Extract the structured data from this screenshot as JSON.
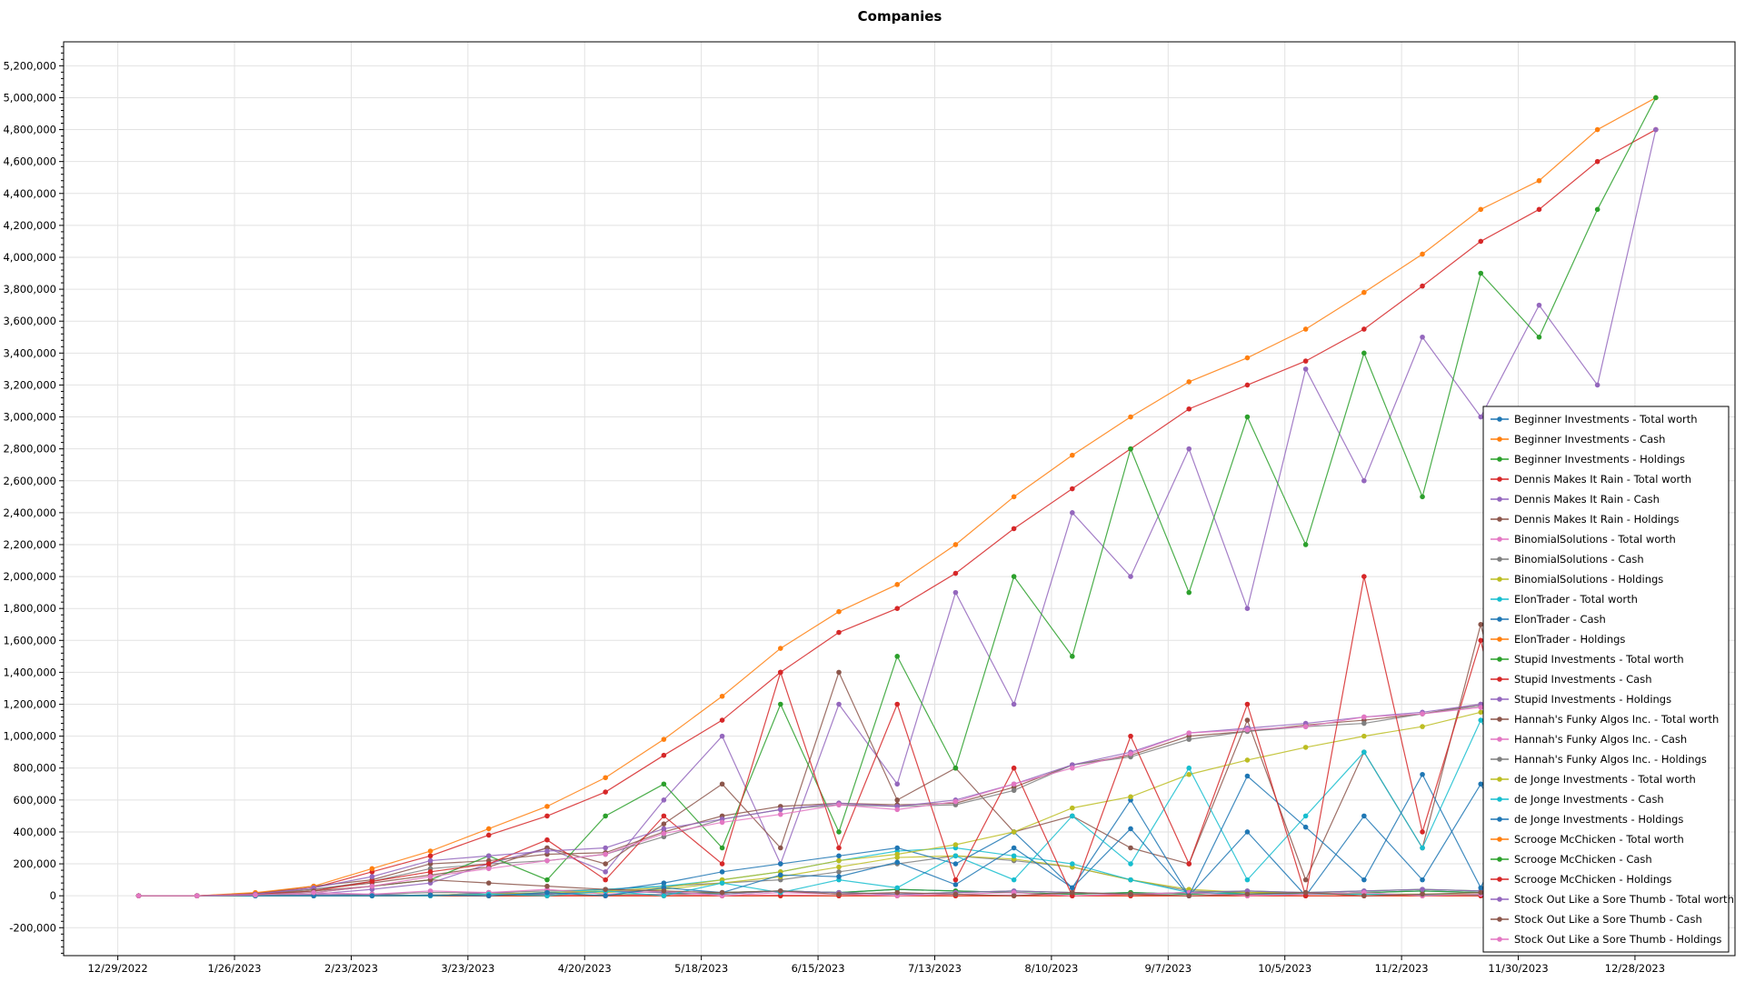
{
  "chart_data": {
    "type": "line",
    "title": "Companies",
    "xlabel": "",
    "ylabel": "",
    "ylim": [
      -375000,
      5350000
    ],
    "xlim": [
      "2022-12-16",
      "2024-01-21"
    ],
    "grid": true,
    "legend": "right",
    "y_ticks": [
      -200000,
      0,
      200000,
      400000,
      600000,
      800000,
      1000000,
      1200000,
      1400000,
      1600000,
      1800000,
      2000000,
      2200000,
      2400000,
      2600000,
      2800000,
      3000000,
      3200000,
      3400000,
      3600000,
      3800000,
      4000000,
      4200000,
      4400000,
      4600000,
      4800000,
      5000000,
      5200000
    ],
    "x_ticks": [
      "12/29/2022",
      "1/26/2023",
      "2/23/2023",
      "3/23/2023",
      "4/20/2023",
      "5/18/2023",
      "6/15/2023",
      "7/13/2023",
      "8/10/2023",
      "9/7/2023",
      "10/5/2023",
      "11/2/2023",
      "11/30/2023",
      "12/28/2023"
    ],
    "palette": [
      "#1f77b4",
      "#ff7f0e",
      "#2ca02c",
      "#d62728",
      "#9467bd",
      "#8c564b",
      "#e377c2",
      "#7f7f7f",
      "#bcbd22",
      "#17becf"
    ],
    "x": [
      "2023-01-03",
      "2023-01-17",
      "2023-01-31",
      "2023-02-14",
      "2023-02-28",
      "2023-03-14",
      "2023-03-28",
      "2023-04-11",
      "2023-04-25",
      "2023-05-09",
      "2023-05-23",
      "2023-06-06",
      "2023-06-20",
      "2023-07-04",
      "2023-07-18",
      "2023-08-01",
      "2023-08-15",
      "2023-08-29",
      "2023-09-12",
      "2023-09-26",
      "2023-10-10",
      "2023-10-24",
      "2023-11-07",
      "2023-11-21",
      "2023-12-05",
      "2023-12-19",
      "2024-01-02"
    ],
    "series": [
      {
        "name": "Beginner Investments - Total worth",
        "values": [
          0,
          0,
          0,
          0,
          0,
          0,
          0,
          0,
          5000,
          10000,
          20000,
          30000,
          20000,
          40000,
          30000,
          20000,
          10000,
          20000,
          10000,
          20000,
          10000,
          20000,
          30000,
          20000,
          30000,
          40000,
          30000
        ]
      },
      {
        "name": "Beginner Investments - Cash",
        "values": [
          0,
          0,
          0,
          0,
          0,
          0,
          0,
          0,
          0,
          0,
          0,
          0,
          0,
          0,
          0,
          0,
          0,
          0,
          0,
          0,
          0,
          0,
          0,
          0,
          0,
          0,
          0
        ]
      },
      {
        "name": "Beginner Investments - Holdings",
        "values": [
          0,
          0,
          0,
          0,
          0,
          0,
          0,
          0,
          5000,
          10000,
          20000,
          30000,
          20000,
          40000,
          30000,
          20000,
          10000,
          20000,
          10000,
          20000,
          10000,
          20000,
          30000,
          20000,
          30000,
          40000,
          30000
        ]
      },
      {
        "name": "Dennis Makes It Rain - Total worth",
        "values": [
          0,
          0,
          15000,
          50000,
          150000,
          250000,
          380000,
          500000,
          650000,
          880000,
          1100000,
          1400000,
          1650000,
          1800000,
          2020000,
          2300000,
          2550000,
          2800000,
          3050000,
          3200000,
          3350000,
          3550000,
          3820000,
          4100000,
          4300000,
          4600000,
          4800000
        ]
      },
      {
        "name": "Dennis Makes It Rain - Cash",
        "values": [
          0,
          0,
          5000,
          10000,
          40000,
          80000,
          200000,
          300000,
          150000,
          600000,
          1000000,
          200000,
          1200000,
          700000,
          1900000,
          1200000,
          2400000,
          2000000,
          2800000,
          1800000,
          3300000,
          2600000,
          3500000,
          3000000,
          3700000,
          3200000,
          4800000
        ]
      },
      {
        "name": "Dennis Makes It Rain - Holdings",
        "values": [
          0,
          0,
          10000,
          40000,
          80000,
          130000,
          180000,
          300000,
          200000,
          450000,
          700000,
          300000,
          1400000,
          600000,
          800000,
          400000,
          500000,
          300000,
          200000,
          1100000,
          100000,
          900000,
          300000,
          1700000,
          200000,
          1600000,
          0
        ]
      },
      {
        "name": "BinomialSolutions - Total worth",
        "values": [
          0,
          0,
          5000,
          10000,
          5000,
          0,
          10000,
          5000,
          0,
          10000,
          0,
          5000,
          0,
          10000,
          0,
          5000,
          0,
          10000,
          0,
          5000,
          0,
          0,
          5000,
          0,
          0,
          5000,
          0
        ]
      },
      {
        "name": "BinomialSolutions - Cash",
        "values": [
          0,
          0,
          0,
          0,
          10000,
          20000,
          20000,
          30000,
          40000,
          60000,
          80000,
          100000,
          150000,
          200000,
          250000,
          220000,
          180000,
          100000,
          30000,
          20000,
          20000,
          10000,
          10000,
          10000,
          10000,
          10000,
          10000
        ]
      },
      {
        "name": "BinomialSolutions - Holdings",
        "values": [
          0,
          0,
          0,
          0,
          0,
          0,
          0,
          10000,
          20000,
          40000,
          80000,
          120000,
          180000,
          240000,
          250000,
          230000,
          180000,
          100000,
          40000,
          20000,
          20000,
          10000,
          10000,
          10000,
          10000,
          10000,
          10000
        ]
      },
      {
        "name": "ElonTrader - Total worth",
        "values": [
          0,
          0,
          0,
          0,
          0,
          0,
          10000,
          20000,
          40000,
          60000,
          100000,
          150000,
          220000,
          280000,
          300000,
          250000,
          200000,
          100000,
          20000,
          10000,
          10000,
          10000,
          5000,
          5000,
          5000,
          5000,
          5000
        ]
      },
      {
        "name": "ElonTrader - Cash",
        "values": [
          0,
          0,
          0,
          0,
          0,
          0,
          0,
          10000,
          30000,
          80000,
          150000,
          200000,
          250000,
          300000,
          200000,
          400000,
          50000,
          600000,
          0,
          400000,
          0,
          500000,
          100000,
          700000,
          0,
          300000,
          0
        ]
      },
      {
        "name": "ElonTrader - Holdings",
        "values": [
          0,
          0,
          0,
          0,
          0,
          0,
          0,
          0,
          0,
          0,
          0,
          0,
          0,
          0,
          0,
          0,
          0,
          0,
          0,
          0,
          0,
          0,
          0,
          0,
          0,
          0,
          0
        ]
      },
      {
        "name": "Stupid Investments - Total worth",
        "values": [
          0,
          0,
          0,
          5000,
          10000,
          0,
          20000,
          10000,
          30000,
          20000,
          10000,
          30000,
          20000,
          10000,
          20000,
          30000,
          20000,
          10000,
          20000,
          30000,
          20000,
          30000,
          40000,
          30000,
          50000,
          40000,
          30000
        ]
      },
      {
        "name": "Stupid Investments - Cash",
        "values": [
          0,
          0,
          0,
          0,
          0,
          0,
          0,
          0,
          0,
          0,
          0,
          0,
          0,
          0,
          0,
          0,
          0,
          0,
          0,
          0,
          0,
          0,
          0,
          0,
          0,
          0,
          0
        ]
      },
      {
        "name": "Stupid Investments - Holdings",
        "values": [
          0,
          0,
          0,
          5000,
          10000,
          0,
          20000,
          10000,
          30000,
          20000,
          10000,
          30000,
          20000,
          10000,
          20000,
          30000,
          20000,
          10000,
          20000,
          30000,
          20000,
          30000,
          40000,
          30000,
          50000,
          40000,
          30000
        ]
      },
      {
        "name": "Hannah's Funky Algos Inc. - Total worth",
        "values": [
          0,
          0,
          15000,
          60000,
          100000,
          200000,
          220000,
          260000,
          270000,
          400000,
          500000,
          560000,
          580000,
          570000,
          580000,
          680000,
          820000,
          880000,
          1000000,
          1030000,
          1070000,
          1100000,
          1140000,
          1200000,
          1220000,
          1240000,
          1250000
        ]
      },
      {
        "name": "Hannah's Funky Algos Inc. - Cash",
        "values": [
          0,
          0,
          10000,
          20000,
          10000,
          30000,
          20000,
          40000,
          10000,
          30000,
          0,
          20000,
          10000,
          0,
          10000,
          20000,
          0,
          10000,
          20000,
          0,
          10000,
          20000,
          0,
          10000,
          0,
          10000,
          0
        ]
      },
      {
        "name": "Hannah's Funky Algos Inc. - Holdings",
        "values": [
          0,
          0,
          10000,
          40000,
          90000,
          170000,
          200000,
          220000,
          260000,
          370000,
          480000,
          540000,
          570000,
          560000,
          570000,
          660000,
          820000,
          870000,
          980000,
          1030000,
          1060000,
          1080000,
          1140000,
          1190000,
          1210000,
          1230000,
          1250000
        ]
      },
      {
        "name": "de Jonge Investments - Total worth",
        "values": [
          0,
          0,
          0,
          0,
          0,
          5000,
          10000,
          20000,
          30000,
          50000,
          100000,
          150000,
          220000,
          260000,
          320000,
          400000,
          550000,
          620000,
          760000,
          850000,
          930000,
          1000000,
          1060000,
          1150000,
          1280000,
          1350000,
          1400000
        ]
      },
      {
        "name": "de Jonge Investments - Cash",
        "values": [
          0,
          0,
          0,
          0,
          0,
          0,
          10000,
          0,
          30000,
          0,
          80000,
          20000,
          100000,
          50000,
          250000,
          100000,
          500000,
          200000,
          800000,
          100000,
          500000,
          900000,
          300000,
          1100000,
          400000,
          1300000,
          200000
        ]
      },
      {
        "name": "de Jonge Investments - Holdings",
        "values": [
          0,
          0,
          0,
          0,
          0,
          5000,
          0,
          20000,
          0,
          50000,
          20000,
          130000,
          120000,
          210000,
          70000,
          300000,
          50000,
          420000,
          0,
          750000,
          430000,
          100000,
          760000,
          50000,
          880000,
          50000,
          1200000
        ]
      },
      {
        "name": "Scrooge McChicken - Total worth",
        "values": [
          0,
          0,
          20000,
          60000,
          170000,
          280000,
          420000,
          560000,
          740000,
          980000,
          1250000,
          1550000,
          1780000,
          1950000,
          2200000,
          2500000,
          2760000,
          3000000,
          3220000,
          3370000,
          3550000,
          3780000,
          4020000,
          4300000,
          4480000,
          4800000,
          5000000
        ]
      },
      {
        "name": "Scrooge McChicken - Cash",
        "values": [
          0,
          0,
          5000,
          20000,
          60000,
          100000,
          250000,
          100000,
          500000,
          700000,
          300000,
          1200000,
          400000,
          1500000,
          800000,
          2000000,
          1500000,
          2800000,
          1900000,
          3000000,
          2200000,
          3400000,
          2500000,
          3900000,
          3500000,
          4300000,
          5000000
        ]
      },
      {
        "name": "Scrooge McChicken - Holdings",
        "values": [
          0,
          0,
          10000,
          30000,
          90000,
          150000,
          200000,
          350000,
          100000,
          500000,
          200000,
          1400000,
          300000,
          1200000,
          100000,
          800000,
          0,
          1000000,
          200000,
          1200000,
          0,
          2000000,
          400000,
          1600000,
          0,
          1800000,
          0
        ]
      },
      {
        "name": "Stock Out Like a Sore Thumb - Total worth",
        "values": [
          0,
          0,
          10000,
          50000,
          120000,
          220000,
          250000,
          280000,
          300000,
          420000,
          480000,
          540000,
          580000,
          560000,
          600000,
          700000,
          820000,
          900000,
          1020000,
          1050000,
          1080000,
          1120000,
          1150000,
          1200000,
          1220000,
          1250000,
          1250000
        ]
      },
      {
        "name": "Stock Out Like a Sore Thumb - Cash",
        "values": [
          0,
          0,
          5000,
          30000,
          60000,
          100000,
          80000,
          60000,
          40000,
          30000,
          20000,
          30000,
          10000,
          20000,
          10000,
          0,
          20000,
          10000,
          0,
          10000,
          20000,
          0,
          10000,
          20000,
          0,
          10000,
          0
        ]
      },
      {
        "name": "Stock Out Like a Sore Thumb - Holdings",
        "values": [
          0,
          0,
          5000,
          20000,
          60000,
          120000,
          170000,
          220000,
          260000,
          390000,
          460000,
          510000,
          570000,
          540000,
          590000,
          700000,
          800000,
          890000,
          1020000,
          1040000,
          1060000,
          1120000,
          1140000,
          1180000,
          1220000,
          1240000,
          1250000
        ]
      }
    ]
  }
}
